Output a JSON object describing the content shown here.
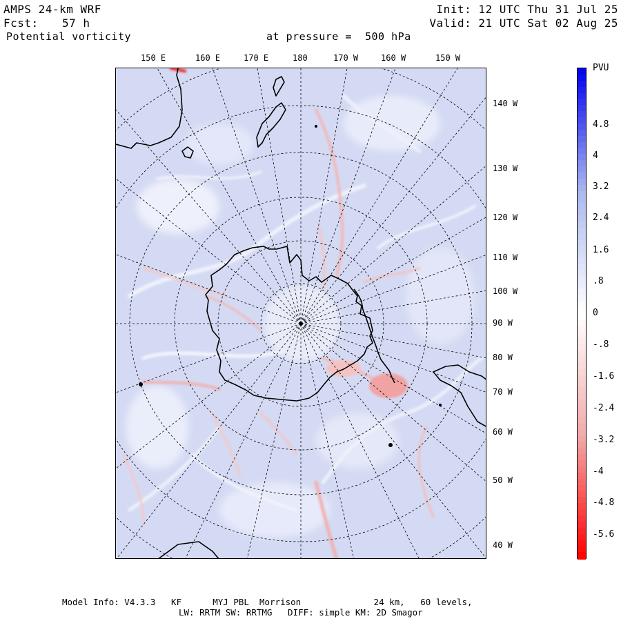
{
  "header": {
    "model": "AMPS 24-km WRF",
    "fcst_label": "Fcst:",
    "fcst_value": "57 h",
    "field": "Potential vorticity",
    "level": "at pressure =  500 hPa",
    "init": "Init: 12 UTC Thu 31 Jul 25",
    "valid": "Valid: 21 UTC Sat 02 Aug 25"
  },
  "map": {
    "top_lon_labels": [
      "150 E",
      "160 E",
      "170 E",
      "180",
      "170 W",
      "160 W",
      "150 W"
    ],
    "right_lon_labels": [
      "140 W",
      "130 W",
      "120 W",
      "110 W",
      "100 W",
      "90 W",
      "80 W",
      "70 W",
      "60 W",
      "50 W",
      "40 W"
    ],
    "background_color": "#d6dcf4",
    "coastline_color": "#000000"
  },
  "colorbar": {
    "units": "PVU",
    "tick_labels": [
      "4.8",
      "4",
      "3.2",
      "2.4",
      "1.6",
      ".8",
      "0",
      "-.8",
      "-1.6",
      "-2.4",
      "-3.2",
      "-4",
      "-4.8",
      "-5.6"
    ],
    "colors": {
      "top": "#0000ee",
      "mid_blue": "#aab8ee",
      "center": "#ffffff",
      "mid_red": "#f2aaaa",
      "bottom": "#ff0000"
    }
  },
  "footer": {
    "line1": "Model Info: V4.3.3   KF      MYJ PBL  Morrison              24 km,   60 levels,",
    "line2": "LW: RRTM SW: RRTMG   DIFF: simple KM: 2D Smagor"
  }
}
